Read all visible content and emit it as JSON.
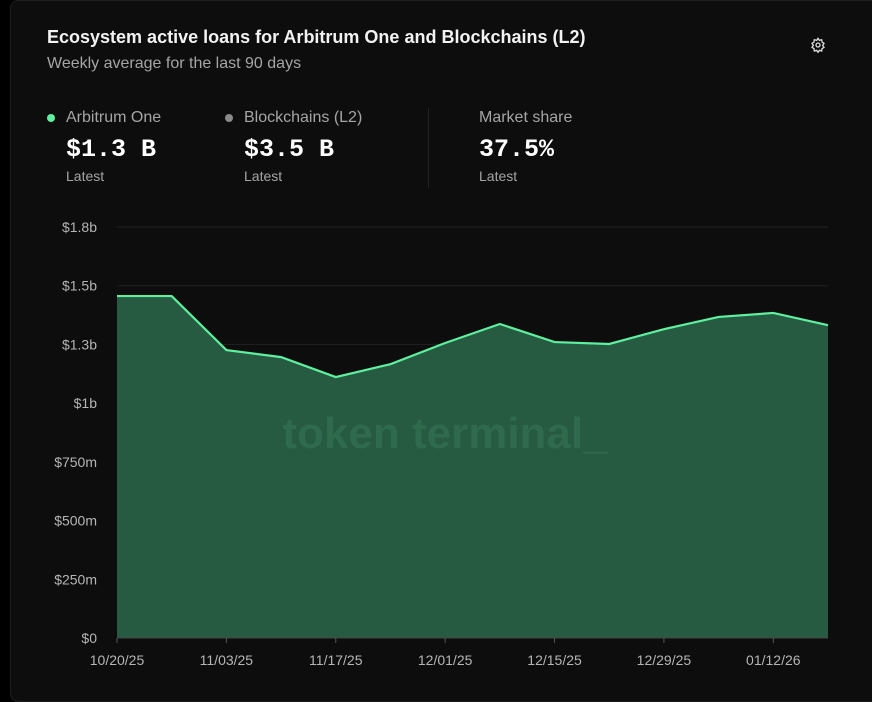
{
  "header": {
    "title": "Ecosystem active loans for Arbitrum One and Blockchains (L2)",
    "subtitle": "Weekly average for the last 90 days",
    "settings_icon": "gear-icon"
  },
  "stats": [
    {
      "label": "Arbitrum One",
      "value": "$1.3 B",
      "sub": "Latest",
      "dot_color": "#5ef0a0"
    },
    {
      "label": "Blockchains (L2)",
      "value": "$3.5 B",
      "sub": "Latest",
      "dot_color": "#8a8a8a"
    },
    {
      "label": "Market share",
      "value": "37.5%",
      "sub": "Latest"
    }
  ],
  "watermark": "token terminal_",
  "chart_data": {
    "type": "area",
    "series": [
      {
        "name": "Arbitrum One",
        "color": "#5ef0a0",
        "fill": "#265a41",
        "values": [
          1.456,
          1.456,
          1.226,
          1.196,
          1.111,
          1.166,
          1.256,
          1.337,
          1.26,
          1.252,
          1.315,
          1.367,
          1.384,
          1.332
        ]
      }
    ],
    "x": [
      "10/20/25",
      "10/27/25",
      "11/03/25",
      "11/10/25",
      "11/17/25",
      "11/24/25",
      "12/01/25",
      "12/08/25",
      "12/15/25",
      "12/22/25",
      "12/29/25",
      "01/05/26",
      "01/12/26",
      "01/19/26"
    ],
    "xticks": [
      "10/20/25",
      "11/03/25",
      "11/17/25",
      "12/01/25",
      "12/15/25",
      "12/29/25",
      "01/12/26"
    ],
    "yticks": [
      {
        "value": 0,
        "label": "$0"
      },
      {
        "value": 0.25,
        "label": "$250m"
      },
      {
        "value": 0.5,
        "label": "$500m"
      },
      {
        "value": 0.75,
        "label": "$750m"
      },
      {
        "value": 1.0,
        "label": "$1b"
      },
      {
        "value": 1.25,
        "label": "$1.3b"
      },
      {
        "value": 1.5,
        "label": "$1.5b"
      },
      {
        "value": 1.75,
        "label": "$1.8b"
      }
    ],
    "ylim": [
      0,
      1.75
    ],
    "yunit": "USD billions",
    "grid": true
  }
}
